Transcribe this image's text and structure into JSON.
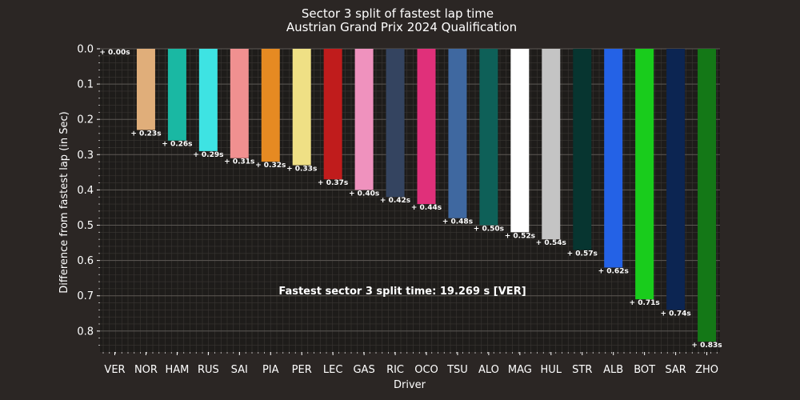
{
  "chart_data": {
    "type": "bar",
    "title": "Sector 3 split of fastest lap time",
    "subtitle": "Austrian Grand Prix 2024 Qualification",
    "xlabel": "Driver",
    "ylabel": "Difference from fastest lap (in Sec)",
    "ylim": [
      0,
      0.87
    ],
    "y_inverted": true,
    "y_ticks": [
      "0.0",
      "0.1",
      "0.2",
      "0.3",
      "0.4",
      "0.5",
      "0.6",
      "0.7",
      "0.8"
    ],
    "grid": true,
    "categories": [
      "VER",
      "NOR",
      "HAM",
      "RUS",
      "SAI",
      "PIA",
      "PER",
      "LEC",
      "GAS",
      "RIC",
      "OCO",
      "TSU",
      "ALO",
      "MAG",
      "HUL",
      "STR",
      "ALB",
      "BOT",
      "SAR",
      "ZHO"
    ],
    "values": [
      0.0,
      0.23,
      0.26,
      0.29,
      0.31,
      0.32,
      0.33,
      0.37,
      0.4,
      0.42,
      0.44,
      0.48,
      0.5,
      0.52,
      0.54,
      0.57,
      0.62,
      0.71,
      0.74,
      0.83
    ],
    "value_labels": [
      "+ 0.00s",
      "+ 0.23s",
      "+ 0.26s",
      "+ 0.29s",
      "+ 0.31s",
      "+ 0.32s",
      "+ 0.33s",
      "+ 0.37s",
      "+ 0.40s",
      "+ 0.42s",
      "+ 0.44s",
      "+ 0.48s",
      "+ 0.50s",
      "+ 0.52s",
      "+ 0.54s",
      "+ 0.57s",
      "+ 0.62s",
      "+ 0.71s",
      "+ 0.74s",
      "+ 0.83s"
    ],
    "colors": [
      "#3a2b6e",
      "#e0ae7a",
      "#1ab8a3",
      "#3ee3e3",
      "#f09090",
      "#e68a22",
      "#efe085",
      "#c01c1c",
      "#ef92be",
      "#344460",
      "#e0307a",
      "#3f68a0",
      "#0e6058",
      "#ffffff",
      "#c4c4c4",
      "#073530",
      "#2462e6",
      "#19cc1c",
      "#0c2552",
      "#147817"
    ],
    "annotation": "Fastest sector 3 split time: 19.269 s [VER]",
    "background": "#2b2624",
    "plot_background": "#1e1c1a"
  }
}
